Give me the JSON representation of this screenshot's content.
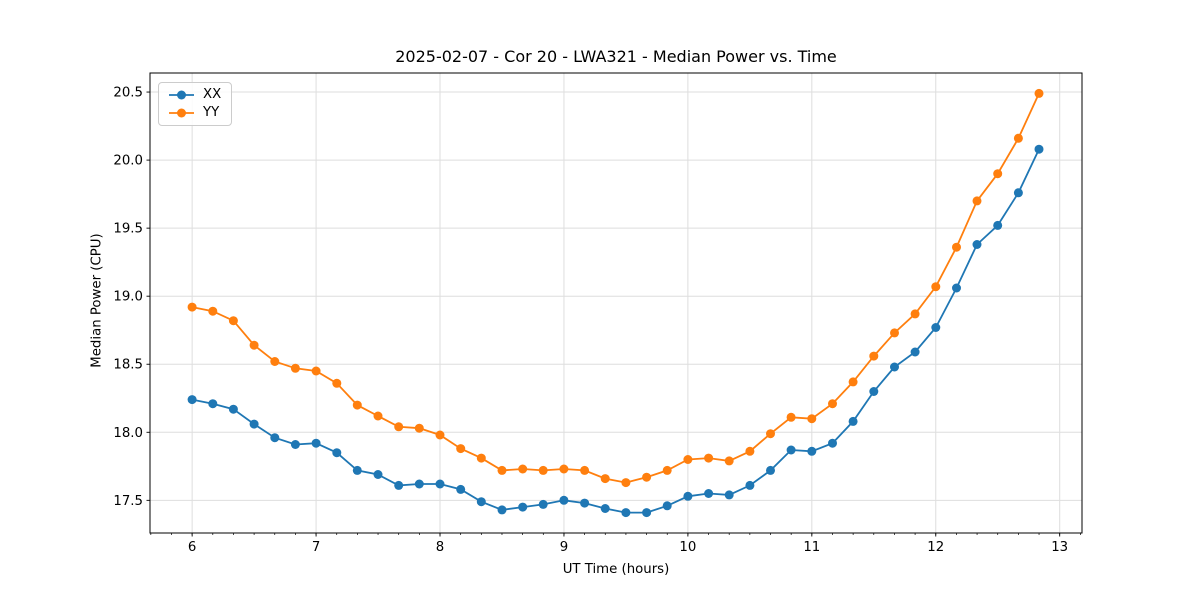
{
  "chart_data": {
    "type": "line",
    "title": "2025-02-07 - Cor 20 - LWA321 - Median Power vs. Time",
    "xlabel": "UT Time (hours)",
    "ylabel": "Median Power (CPU)",
    "xlim": [
      5.66,
      13.18
    ],
    "ylim": [
      17.26,
      20.64
    ],
    "grid": true,
    "legend_position": "upper-left",
    "marker": "o",
    "xticks": {
      "values": [
        6,
        7,
        8,
        9,
        10,
        11,
        12,
        13
      ],
      "labels": [
        "6",
        "7",
        "8",
        "9",
        "10",
        "11",
        "12",
        "13"
      ]
    },
    "yticks": {
      "values": [
        17.5,
        18.0,
        18.5,
        19.0,
        19.5,
        20.0,
        20.5
      ],
      "labels": [
        "17.5",
        "18.0",
        "18.5",
        "19.0",
        "19.5",
        "20.0",
        "20.5"
      ]
    },
    "x_minor_tick_step": 0.166667,
    "x": [
      6.0,
      6.167,
      6.333,
      6.5,
      6.667,
      6.833,
      7.0,
      7.167,
      7.333,
      7.5,
      7.667,
      7.833,
      8.0,
      8.167,
      8.333,
      8.5,
      8.667,
      8.833,
      9.0,
      9.167,
      9.333,
      9.5,
      9.667,
      9.833,
      10.0,
      10.167,
      10.333,
      10.5,
      10.667,
      10.833,
      11.0,
      11.167,
      11.333,
      11.5,
      11.667,
      11.833,
      12.0,
      12.167,
      12.333,
      12.5,
      12.667,
      12.833
    ],
    "series": [
      {
        "name": "XX",
        "color": "#1f77b4",
        "values": [
          18.24,
          18.21,
          18.17,
          18.06,
          17.96,
          17.91,
          17.92,
          17.85,
          17.72,
          17.69,
          17.61,
          17.62,
          17.62,
          17.58,
          17.49,
          17.43,
          17.45,
          17.47,
          17.5,
          17.48,
          17.44,
          17.41,
          17.41,
          17.46,
          17.53,
          17.55,
          17.54,
          17.61,
          17.72,
          17.87,
          17.86,
          17.92,
          18.08,
          18.3,
          18.48,
          18.59,
          18.77,
          19.06,
          19.38,
          19.52,
          19.76,
          20.08
        ]
      },
      {
        "name": "YY",
        "color": "#ff7f0e",
        "values": [
          18.92,
          18.89,
          18.82,
          18.64,
          18.52,
          18.47,
          18.45,
          18.36,
          18.2,
          18.12,
          18.04,
          18.03,
          17.98,
          17.88,
          17.81,
          17.72,
          17.73,
          17.72,
          17.73,
          17.72,
          17.66,
          17.63,
          17.67,
          17.72,
          17.8,
          17.81,
          17.79,
          17.86,
          17.99,
          18.11,
          18.1,
          18.21,
          18.37,
          18.56,
          18.73,
          18.87,
          19.07,
          19.36,
          19.7,
          19.9,
          20.16,
          20.49
        ]
      }
    ]
  },
  "style": {
    "grid_color": "#dedede",
    "spine_color": "#000000",
    "tick_color": "#000000"
  }
}
